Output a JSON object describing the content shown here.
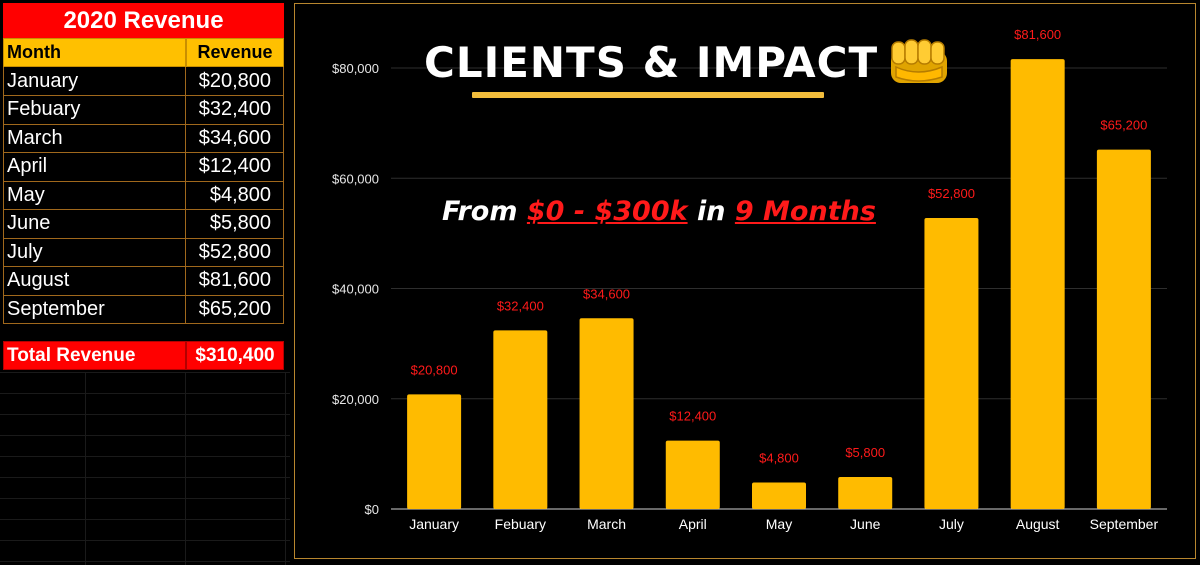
{
  "sheet": {
    "title": "2020 Revenue",
    "headers": {
      "month": "Month",
      "revenue": "Revenue"
    },
    "rows": [
      {
        "month": "January",
        "revenue": "$20,800"
      },
      {
        "month": "Febuary",
        "revenue": "$32,400"
      },
      {
        "month": "March",
        "revenue": "$34,600"
      },
      {
        "month": "April",
        "revenue": "$12,400"
      },
      {
        "month": "May",
        "revenue": "$4,800"
      },
      {
        "month": "June",
        "revenue": "$5,800"
      },
      {
        "month": "July",
        "revenue": "$52,800"
      },
      {
        "month": "August",
        "revenue": "$81,600"
      },
      {
        "month": "September",
        "revenue": "$65,200"
      }
    ],
    "total_label": "Total Revenue",
    "total_value": "$310,400"
  },
  "headline": {
    "text": "CLIENTS & IMPACT",
    "icon": "fist-icon",
    "tagline_from": "From",
    "tagline_range": "$0 - $300k",
    "tagline_in": "in",
    "tagline_period": "9 Months"
  },
  "colors": {
    "bar": "#ffbb00",
    "data_label": "#ff1a1a",
    "accent_red": "#ff0000",
    "header_gold": "#ffc000",
    "underline": "#f2bd3c"
  },
  "chart_data": {
    "type": "bar",
    "categories": [
      "January",
      "Febuary",
      "March",
      "April",
      "May",
      "June",
      "July",
      "August",
      "September"
    ],
    "values": [
      20800,
      32400,
      34600,
      12400,
      4800,
      5800,
      52800,
      81600,
      65200
    ],
    "value_labels": [
      "$20,800",
      "$32,400",
      "$34,600",
      "$12,400",
      "$4,800",
      "$5,800",
      "$52,800",
      "$81,600",
      "$65,200"
    ],
    "yticks": [
      0,
      20000,
      40000,
      60000,
      80000
    ],
    "ytick_labels": [
      "$0",
      "$20,000",
      "$40,000",
      "$60,000",
      "$80,000"
    ],
    "ylim": [
      0,
      80000
    ],
    "grid": true,
    "title": "",
    "xlabel": "",
    "ylabel": ""
  }
}
